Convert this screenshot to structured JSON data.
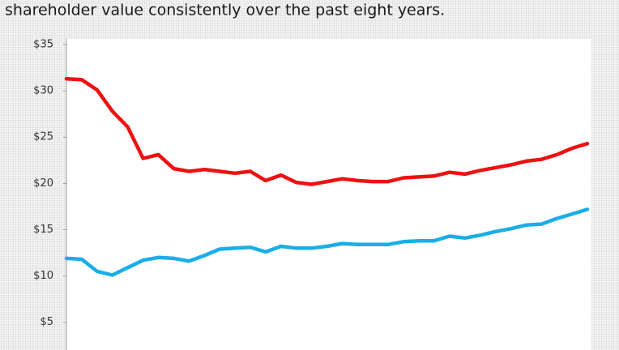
{
  "chart_data": {
    "type": "line",
    "title": "shareholder value consistently over the past eight years.",
    "categories": [
      null,
      null,
      null,
      null,
      null,
      null,
      null,
      null,
      null,
      null,
      null,
      null,
      null,
      null,
      null,
      null,
      null,
      null,
      null,
      null,
      null,
      null,
      null,
      null,
      null,
      null,
      null,
      null,
      null,
      null,
      null,
      null,
      null,
      null,
      null
    ],
    "series": [
      {
        "color": "#ee1111",
        "values": [
          31.3,
          31.2,
          30.1,
          27.8,
          26.1,
          22.7,
          23.1,
          21.6,
          21.3,
          21.5,
          21.3,
          21.1,
          21.3,
          20.3,
          20.9,
          20.1,
          19.9,
          20.2,
          20.5,
          20.3,
          20.2,
          20.2,
          20.6,
          20.7,
          20.8,
          21.2,
          21.0,
          21.4,
          21.7,
          22.0,
          22.4,
          22.6,
          23.1,
          23.8,
          24.3
        ]
      },
      {
        "color": "#19aee8",
        "values": [
          11.9,
          11.8,
          10.5,
          10.1,
          10.9,
          11.7,
          12.0,
          11.9,
          11.6,
          12.2,
          12.9,
          13.0,
          13.1,
          12.6,
          13.2,
          13.0,
          13.0,
          13.2,
          13.5,
          13.4,
          13.4,
          13.4,
          13.7,
          13.8,
          13.8,
          14.3,
          14.1,
          14.4,
          14.8,
          15.1,
          15.5,
          15.6,
          16.2,
          16.7,
          17.2
        ]
      }
    ],
    "ylim": [
      2,
      35
    ],
    "yticks": [
      {
        "value": 5,
        "label": "$5"
      },
      {
        "value": 10,
        "label": "$10"
      },
      {
        "value": 15,
        "label": "$15"
      },
      {
        "value": 20,
        "label": "$20"
      },
      {
        "value": 25,
        "label": "$25"
      },
      {
        "value": 30,
        "label": "$30"
      },
      {
        "value": 35,
        "label": "$35"
      }
    ],
    "grid": false
  }
}
